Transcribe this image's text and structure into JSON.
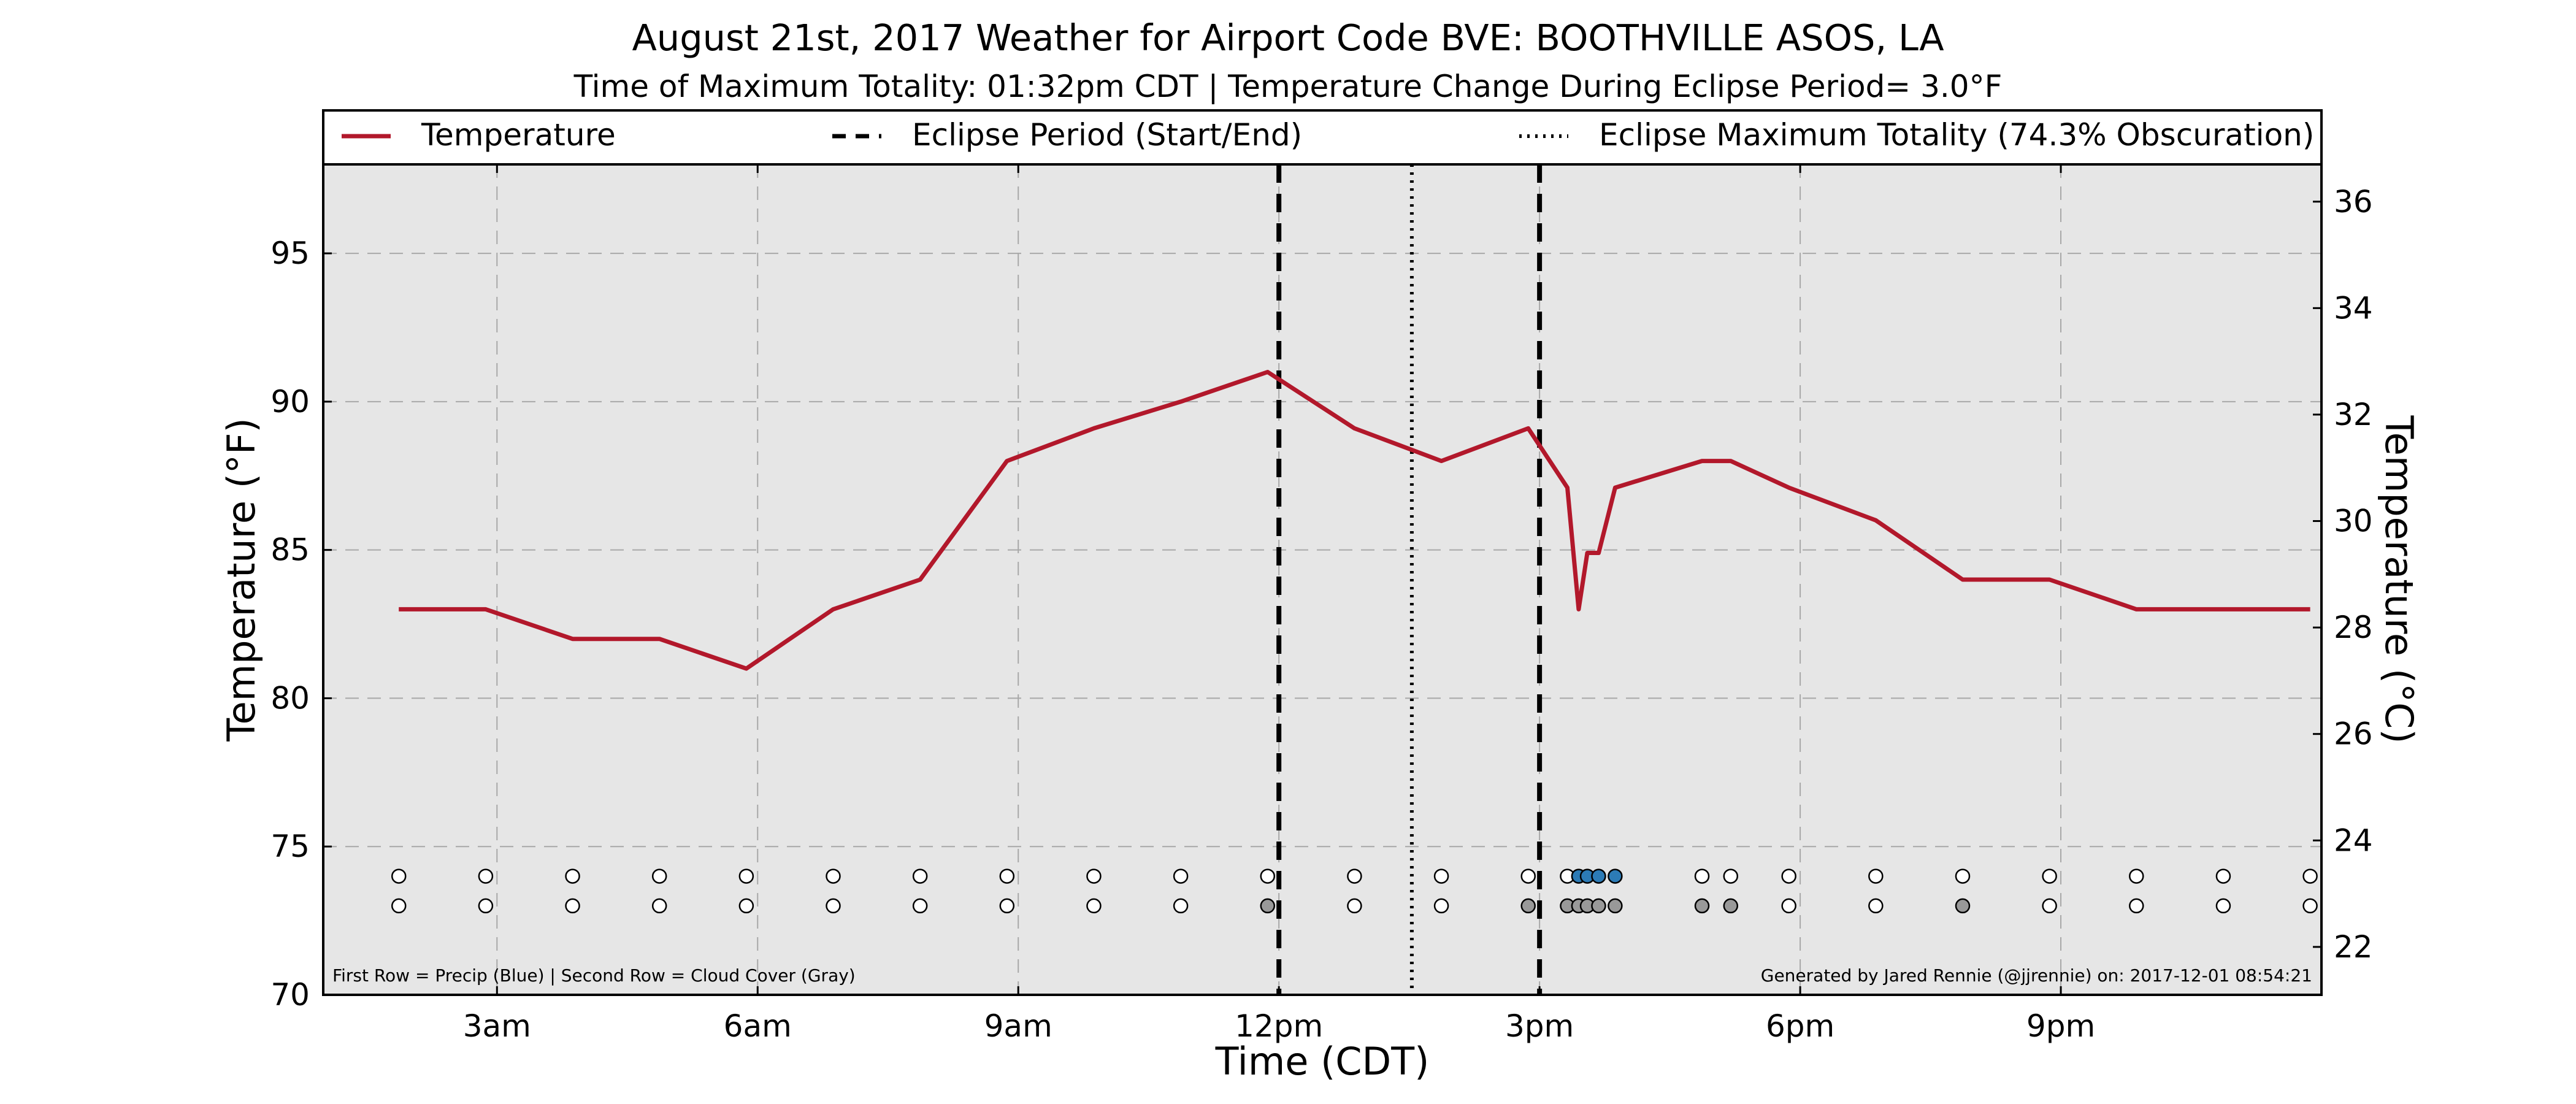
{
  "chart_data": {
    "type": "line",
    "title": "August 21st, 2017 Weather for Airport Code BVE: BOOTHVILLE ASOS, LA",
    "subtitle": "Time of Maximum Totality: 01:32pm CDT | Temperature Change During Eclipse Period= 3.0°F",
    "xlabel": "Time (CDT)",
    "ylabel": "Temperature (°F)",
    "y2label": "Temperature (°C)",
    "xlim": [
      1.0,
      24.0
    ],
    "ylim": [
      70,
      98
    ],
    "y2lim": [
      21.1,
      36.7
    ],
    "grid": true,
    "legend_position": "top",
    "x_ticks": [
      {
        "x": 3,
        "label": "3am"
      },
      {
        "x": 6,
        "label": "6am"
      },
      {
        "x": 9,
        "label": "9am"
      },
      {
        "x": 12,
        "label": "12pm"
      },
      {
        "x": 15,
        "label": "3pm"
      },
      {
        "x": 18,
        "label": "6pm"
      },
      {
        "x": 21,
        "label": "9pm"
      }
    ],
    "y_ticks": [
      {
        "y": 70,
        "label": "70"
      },
      {
        "y": 75,
        "label": "75"
      },
      {
        "y": 80,
        "label": "80"
      },
      {
        "y": 85,
        "label": "85"
      },
      {
        "y": 90,
        "label": "90"
      },
      {
        "y": 95,
        "label": "95"
      }
    ],
    "y2_ticks": [
      {
        "y": 22,
        "label": "22"
      },
      {
        "y": 24,
        "label": "24"
      },
      {
        "y": 26,
        "label": "26"
      },
      {
        "y": 28,
        "label": "28"
      },
      {
        "y": 30,
        "label": "30"
      },
      {
        "y": 32,
        "label": "32"
      },
      {
        "y": 34,
        "label": "34"
      },
      {
        "y": 36,
        "label": "36"
      }
    ],
    "legend": [
      {
        "label": "Temperature",
        "style": "solid"
      },
      {
        "label": "Eclipse Period (Start/End)",
        "style": "dashed"
      },
      {
        "label": "Eclipse Maximum Totality (74.3% Obscuration)",
        "style": "dotted"
      }
    ],
    "series": [
      {
        "name": "Temperature",
        "color": "#b2182b",
        "points": [
          [
            1.87,
            83
          ],
          [
            2.87,
            83
          ],
          [
            3.87,
            82
          ],
          [
            4.87,
            82
          ],
          [
            5.87,
            81
          ],
          [
            6.87,
            83
          ],
          [
            7.87,
            84
          ],
          [
            8.87,
            88
          ],
          [
            9.87,
            89.1
          ],
          [
            10.87,
            90
          ],
          [
            11.87,
            91
          ],
          [
            12.87,
            89.1
          ],
          [
            13.87,
            88
          ],
          [
            14.87,
            89.1
          ],
          [
            15.32,
            87.1
          ],
          [
            15.45,
            83
          ],
          [
            15.55,
            84.9
          ],
          [
            15.68,
            84.9
          ],
          [
            15.87,
            87.1
          ],
          [
            16.87,
            88
          ],
          [
            17.2,
            88
          ],
          [
            17.87,
            87.1
          ],
          [
            18.87,
            86
          ],
          [
            19.87,
            84
          ],
          [
            20.87,
            84
          ],
          [
            21.87,
            83
          ],
          [
            22.87,
            83
          ],
          [
            23.87,
            83
          ]
        ]
      }
    ],
    "eclipse_lines": [
      {
        "x": 12.0,
        "style": "dashed",
        "label": "Eclipse start"
      },
      {
        "x": 13.53,
        "style": "dotted",
        "label": "Maximum totality"
      },
      {
        "x": 15.0,
        "style": "dashed",
        "label": "Eclipse end"
      }
    ],
    "observation_rows": {
      "precip_y": 74,
      "cloud_y": 73,
      "precip_color": "#2c7bb6",
      "cloud_color": "#999999",
      "precip": [
        [
          1.87,
          0
        ],
        [
          2.87,
          0
        ],
        [
          3.87,
          0
        ],
        [
          4.87,
          0
        ],
        [
          5.87,
          0
        ],
        [
          6.87,
          0
        ],
        [
          7.87,
          0
        ],
        [
          8.87,
          0
        ],
        [
          9.87,
          0
        ],
        [
          10.87,
          0
        ],
        [
          11.87,
          0
        ],
        [
          12.87,
          0
        ],
        [
          13.87,
          0
        ],
        [
          14.87,
          0
        ],
        [
          15.32,
          0
        ],
        [
          15.45,
          1
        ],
        [
          15.55,
          1
        ],
        [
          15.68,
          1
        ],
        [
          15.87,
          1
        ],
        [
          16.87,
          0
        ],
        [
          17.2,
          0
        ],
        [
          17.87,
          0
        ],
        [
          18.87,
          0
        ],
        [
          19.87,
          0
        ],
        [
          20.87,
          0
        ],
        [
          21.87,
          0
        ],
        [
          22.87,
          0
        ],
        [
          23.87,
          0
        ]
      ],
      "cloud": [
        [
          1.87,
          0
        ],
        [
          2.87,
          0
        ],
        [
          3.87,
          0
        ],
        [
          4.87,
          0
        ],
        [
          5.87,
          0
        ],
        [
          6.87,
          0
        ],
        [
          7.87,
          0
        ],
        [
          8.87,
          0
        ],
        [
          9.87,
          0
        ],
        [
          10.87,
          0
        ],
        [
          11.87,
          1
        ],
        [
          12.87,
          0
        ],
        [
          13.87,
          0
        ],
        [
          14.87,
          1
        ],
        [
          15.32,
          1
        ],
        [
          15.45,
          1
        ],
        [
          15.55,
          1
        ],
        [
          15.68,
          1
        ],
        [
          15.87,
          1
        ],
        [
          16.87,
          1
        ],
        [
          17.2,
          1
        ],
        [
          17.87,
          0
        ],
        [
          18.87,
          0
        ],
        [
          19.87,
          1
        ],
        [
          20.87,
          0
        ],
        [
          21.87,
          0
        ],
        [
          22.87,
          0
        ],
        [
          23.87,
          0
        ]
      ]
    },
    "footnote_left": "First Row = Precip (Blue) | Second Row = Cloud Cover (Gray)",
    "footnote_right": "Generated by Jared Rennie (@jjrennie) on: 2017-12-01 08:54:21"
  }
}
